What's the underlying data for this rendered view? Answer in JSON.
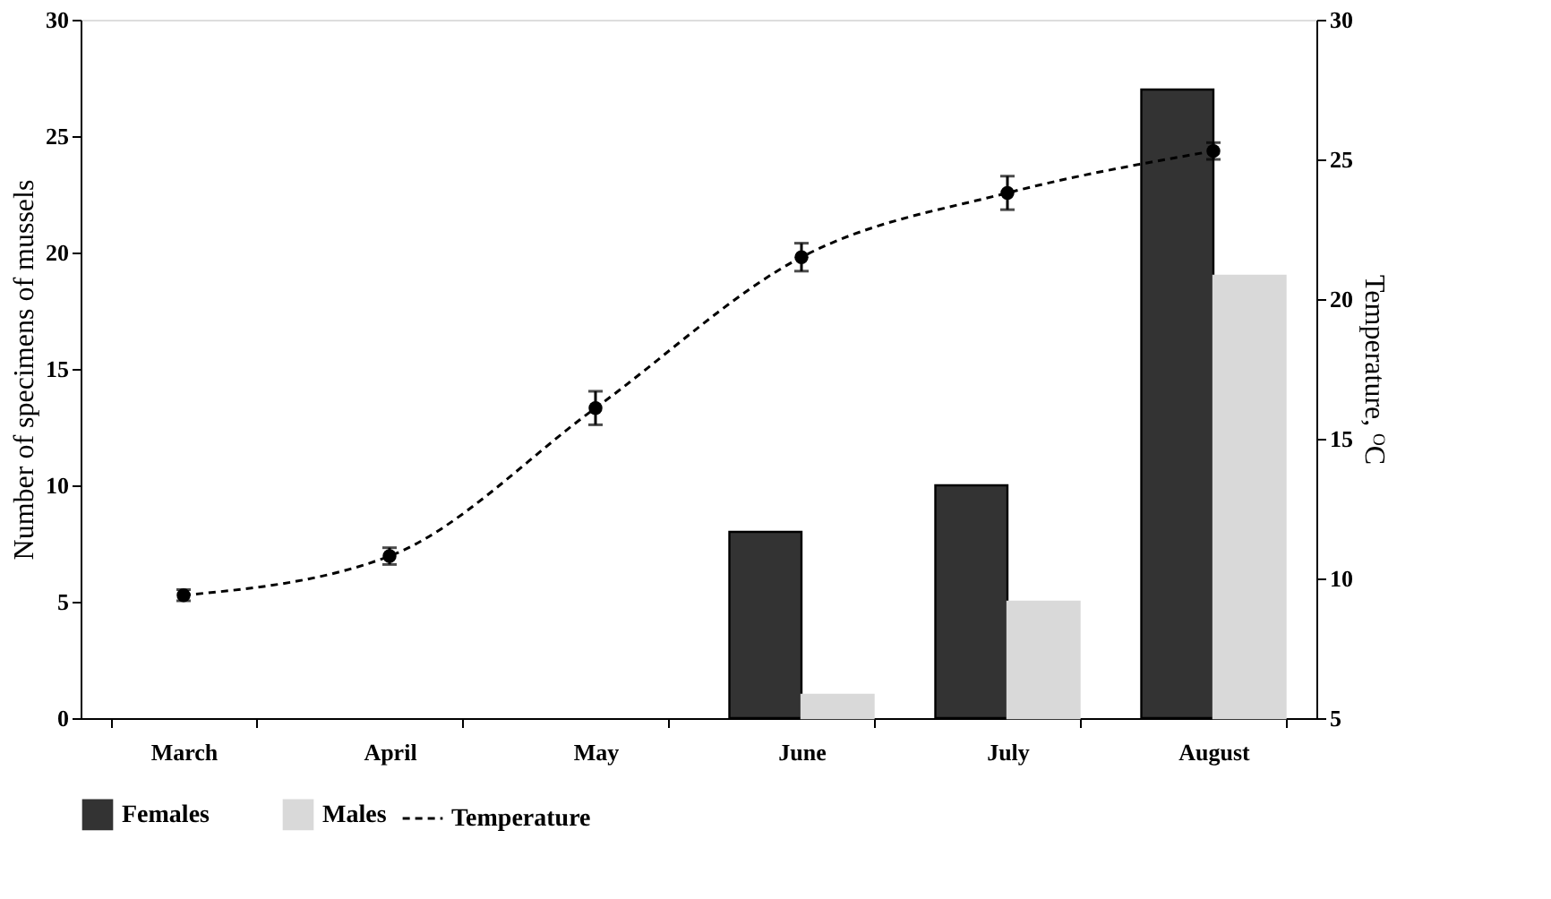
{
  "chart_data": {
    "type": "bar",
    "categories": [
      "March",
      "April",
      "May",
      "June",
      "July",
      "August"
    ],
    "ylabel": "Number of specimens of mussels",
    "y2label": "Temperature, ᴼC",
    "ylim": [
      0,
      30
    ],
    "yticks": [
      0,
      5,
      10,
      15,
      20,
      25,
      30
    ],
    "y2lim": [
      5,
      30
    ],
    "y2ticks": [
      5,
      10,
      15,
      20,
      25,
      30
    ],
    "series": [
      {
        "name": "Females",
        "color": "#333333",
        "values": [
          0,
          0,
          0,
          8,
          10,
          27
        ]
      },
      {
        "name": "Males",
        "color": "#d9d9d9",
        "values": [
          0,
          0,
          0,
          1,
          5,
          19
        ]
      },
      {
        "name": "Temperature",
        "type": "line",
        "axis": "y2",
        "color": "#000000",
        "marker": "circle",
        "line_style": "dashed",
        "values": [
          9.4,
          10.8,
          16.1,
          21.5,
          23.8,
          25.3
        ],
        "errors": [
          0.2,
          0.3,
          0.6,
          0.5,
          0.6,
          0.3
        ]
      }
    ],
    "legend": "bottom",
    "grid": false
  }
}
